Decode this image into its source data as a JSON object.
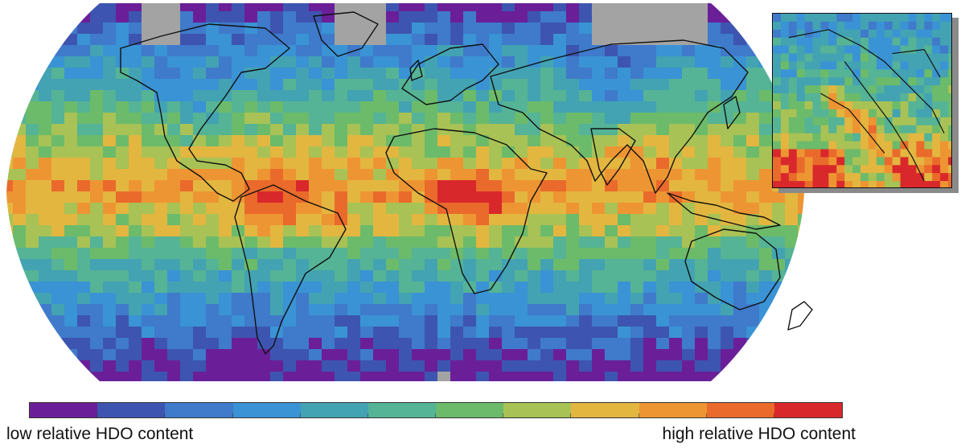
{
  "legend": {
    "low_label": "low relative HDO content",
    "high_label": "high relative HDO content",
    "colors": [
      "#6a1f99",
      "#3d55b0",
      "#3f7acb",
      "#3a93d4",
      "#43a3b2",
      "#55b396",
      "#6cbb6a",
      "#a8c255",
      "#e3b640",
      "#ee9533",
      "#ea6a2b",
      "#d9282b"
    ]
  },
  "map": {
    "no_data_color": "#a3a3a3",
    "coastline_color": "#111111"
  }
}
